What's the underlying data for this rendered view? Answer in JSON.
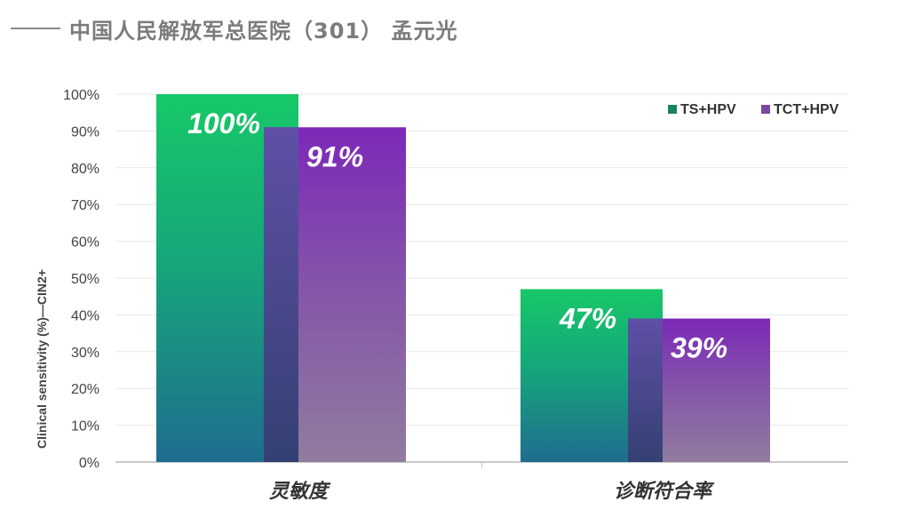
{
  "header": {
    "title": "中国人民解放军总医院（301） 孟元光"
  },
  "chart_data": {
    "type": "bar",
    "categories": [
      "灵敏度",
      "诊断符合率"
    ],
    "series": [
      {
        "name": "TS+HPV",
        "values": [
          100,
          47
        ],
        "labels": [
          "100%",
          "47%"
        ]
      },
      {
        "name": "TCT+HPV",
        "values": [
          91,
          39
        ],
        "labels": [
          "91%",
          "39%"
        ]
      }
    ],
    "ylabel": "Clinical sensitivity (%)—CIN2+",
    "ylim": [
      0,
      100
    ],
    "yticks": [
      0,
      10,
      20,
      30,
      40,
      50,
      60,
      70,
      80,
      90,
      100
    ],
    "ytick_labels": [
      "0%",
      "10%",
      "20%",
      "30%",
      "40%",
      "50%",
      "60%",
      "70%",
      "80%",
      "90%",
      "100%"
    ],
    "grid": true,
    "legend_position": "top-right"
  },
  "colors": {
    "ts_hpv_top": "#18c468",
    "ts_hpv_bottom": "#1f6f8f",
    "tct_hpv_top": "#7f2ab5",
    "tct_hpv_bottom": "#8f7d9e",
    "legend_ts_hpv": "#19835e",
    "legend_tct_hpv": "#7b4aa0",
    "gridline": "#e8e8e8",
    "axis": "#bdbdbd"
  }
}
